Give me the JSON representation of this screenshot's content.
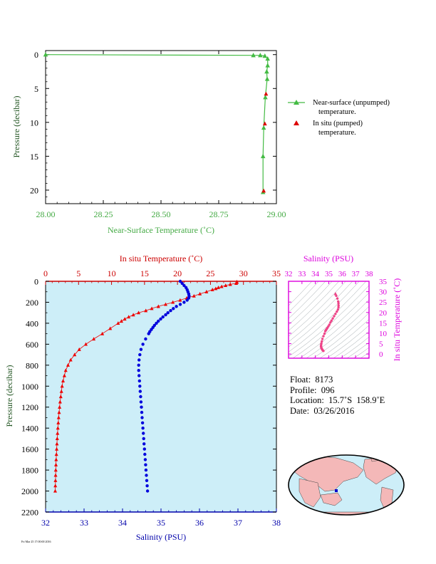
{
  "chart_data": [
    {
      "type": "line",
      "xlabel": "Near-Surface Temperature (˚C)",
      "ylabel": "Pressure (decibar)",
      "xlim": [
        28.0,
        29.0
      ],
      "ylim": [
        22,
        -0.6
      ],
      "xticks": [
        "28.00",
        "28.25",
        "28.50",
        "28.75",
        "29.00"
      ],
      "yticks": [
        "0",
        "5",
        "10",
        "15",
        "20"
      ],
      "colors": {
        "axis": "#44aa44",
        "unpumped": "#44bb44",
        "pumped": "#dd0000"
      },
      "series": [
        {
          "name": "Near-surface (unpumped)",
          "name2": "temperature.",
          "x": [
            28.0,
            28.9,
            28.93,
            28.95,
            28.962,
            28.962,
            28.958,
            28.96,
            28.952,
            28.945,
            28.942,
            28.942
          ],
          "y": [
            0.0,
            0.1,
            0.1,
            0.2,
            0.6,
            1.6,
            2.5,
            3.6,
            6.3,
            10.8,
            15.0,
            20.3
          ]
        },
        {
          "name": "In situ (pumped)",
          "name2": "temperature.",
          "x": [
            28.955,
            28.95,
            28.945
          ],
          "y": [
            5.8,
            10.2,
            20.1
          ]
        }
      ]
    },
    {
      "type": "scatter",
      "ylabel": "Pressure (decibar)",
      "top_xlabel": "In situ Temperature (˚C)",
      "bottom_xlabel": "Salinity (PSU)",
      "temperature_axis": {
        "range": [
          0,
          35
        ],
        "ticks": [
          "0",
          "5",
          "10",
          "15",
          "20",
          "25",
          "30",
          "35"
        ],
        "color": "#cc0000"
      },
      "salinity_axis": {
        "range": [
          32,
          38
        ],
        "ticks": [
          "32",
          "33",
          "34",
          "35",
          "36",
          "37",
          "38"
        ],
        "color": "#0000aa"
      },
      "pressure_axis": {
        "range": [
          0,
          2200
        ],
        "ticks": [
          "0",
          "200",
          "400",
          "600",
          "800",
          "1000",
          "1200",
          "1400",
          "1600",
          "1800",
          "2000",
          "2200"
        ]
      },
      "background": "#cdeef8",
      "temperature_profile": {
        "color": "#ee0000",
        "p": [
          5,
          10,
          20,
          30,
          40,
          50,
          60,
          70,
          80,
          100,
          120,
          140,
          160,
          180,
          200,
          220,
          240,
          260,
          280,
          300,
          320,
          340,
          360,
          380,
          400,
          450,
          500,
          550,
          600,
          650,
          700,
          750,
          800,
          850,
          900,
          950,
          1000,
          1050,
          1100,
          1150,
          1200,
          1250,
          1300,
          1350,
          1400,
          1450,
          1500,
          1550,
          1600,
          1650,
          1700,
          1750,
          1800,
          1850,
          1900,
          1950,
          2000
        ],
        "t": [
          29.0,
          29.0,
          28.9,
          28.0,
          27.3,
          26.7,
          26.2,
          25.8,
          25.3,
          24.4,
          23.4,
          22.5,
          21.4,
          20.4,
          19.3,
          18.2,
          17.1,
          16.1,
          15.2,
          14.1,
          13.3,
          12.6,
          12.0,
          11.5,
          11.0,
          9.8,
          8.6,
          7.3,
          6.1,
          5.1,
          4.4,
          3.8,
          3.4,
          3.05,
          2.85,
          2.65,
          2.5,
          2.4,
          2.3,
          2.2,
          2.12,
          2.05,
          1.98,
          1.92,
          1.86,
          1.81,
          1.76,
          1.72,
          1.68,
          1.64,
          1.6,
          1.57,
          1.54,
          1.52,
          1.5,
          1.48,
          1.46
        ]
      },
      "salinity_profile": {
        "color": "#0000dd",
        "p": [
          0,
          20,
          40,
          60,
          80,
          100,
          120,
          140,
          160,
          180,
          200,
          220,
          240,
          260,
          280,
          300,
          320,
          340,
          360,
          380,
          400,
          420,
          440,
          460,
          480,
          500,
          550,
          600,
          650,
          700,
          750,
          800,
          850,
          900,
          950,
          1000,
          1050,
          1100,
          1150,
          1200,
          1250,
          1300,
          1350,
          1400,
          1450,
          1500,
          1550,
          1600,
          1650,
          1700,
          1750,
          1800,
          1850,
          1900,
          1950,
          2000
        ],
        "s": [
          35.5,
          35.55,
          35.6,
          35.65,
          35.68,
          35.7,
          35.72,
          35.73,
          35.72,
          35.68,
          35.6,
          35.5,
          35.4,
          35.32,
          35.25,
          35.18,
          35.12,
          35.05,
          34.99,
          34.93,
          34.88,
          34.83,
          34.79,
          34.75,
          34.71,
          34.68,
          34.6,
          34.53,
          34.48,
          34.45,
          34.43,
          34.42,
          34.42,
          34.43,
          34.44,
          34.45,
          34.46,
          34.47,
          34.48,
          34.49,
          34.5,
          34.51,
          34.52,
          34.53,
          34.54,
          34.55,
          34.56,
          34.57,
          34.58,
          34.59,
          34.6,
          34.61,
          34.62,
          34.63,
          34.64,
          34.65
        ]
      }
    },
    {
      "type": "scatter",
      "xlabel": "Salinity (PSU)",
      "ylabel": "In situ Temperature (˚C)",
      "xlim": [
        32,
        38
      ],
      "ylim": [
        -2,
        35
      ],
      "xticks": [
        "32",
        "33",
        "34",
        "35",
        "36",
        "37",
        "38"
      ],
      "yticks": [
        "0",
        "5",
        "10",
        "15",
        "20",
        "25",
        "30",
        "35"
      ],
      "color": "#dd00dd",
      "points_color": "#ee4488",
      "points_t": [
        29.0,
        28.0,
        26.7,
        25.3,
        24.4,
        23.4,
        22.5,
        21.4,
        20.4,
        19.3,
        18.2,
        17.1,
        16.1,
        15.2,
        14.1,
        13.3,
        12.6,
        12.0,
        11.5,
        11.0,
        9.8,
        8.6,
        7.3,
        6.1,
        5.1,
        4.4,
        3.8,
        3.4,
        3.0,
        2.6,
        2.3,
        2.0,
        1.7,
        1.5
      ],
      "points_s": [
        35.5,
        35.56,
        35.64,
        35.7,
        35.72,
        35.73,
        35.72,
        35.68,
        35.6,
        35.5,
        35.4,
        35.3,
        35.2,
        35.12,
        35.04,
        34.97,
        34.9,
        34.84,
        34.79,
        34.74,
        34.68,
        34.6,
        34.53,
        34.48,
        34.45,
        34.43,
        34.42,
        34.43,
        34.45,
        34.47,
        34.5,
        34.53,
        34.56,
        34.6
      ]
    }
  ],
  "info": {
    "float": "Float:  8173",
    "profile": "Profile:  096",
    "location": "Location:  15.7˚S  158.9˚E",
    "date": "Date:  03/26/2016"
  },
  "map": {
    "land": "#f4b8b8",
    "ocean": "#cdeef8",
    "marker": "#0000cc"
  },
  "footer": "Fri Mar 25 17:00:00 2016"
}
